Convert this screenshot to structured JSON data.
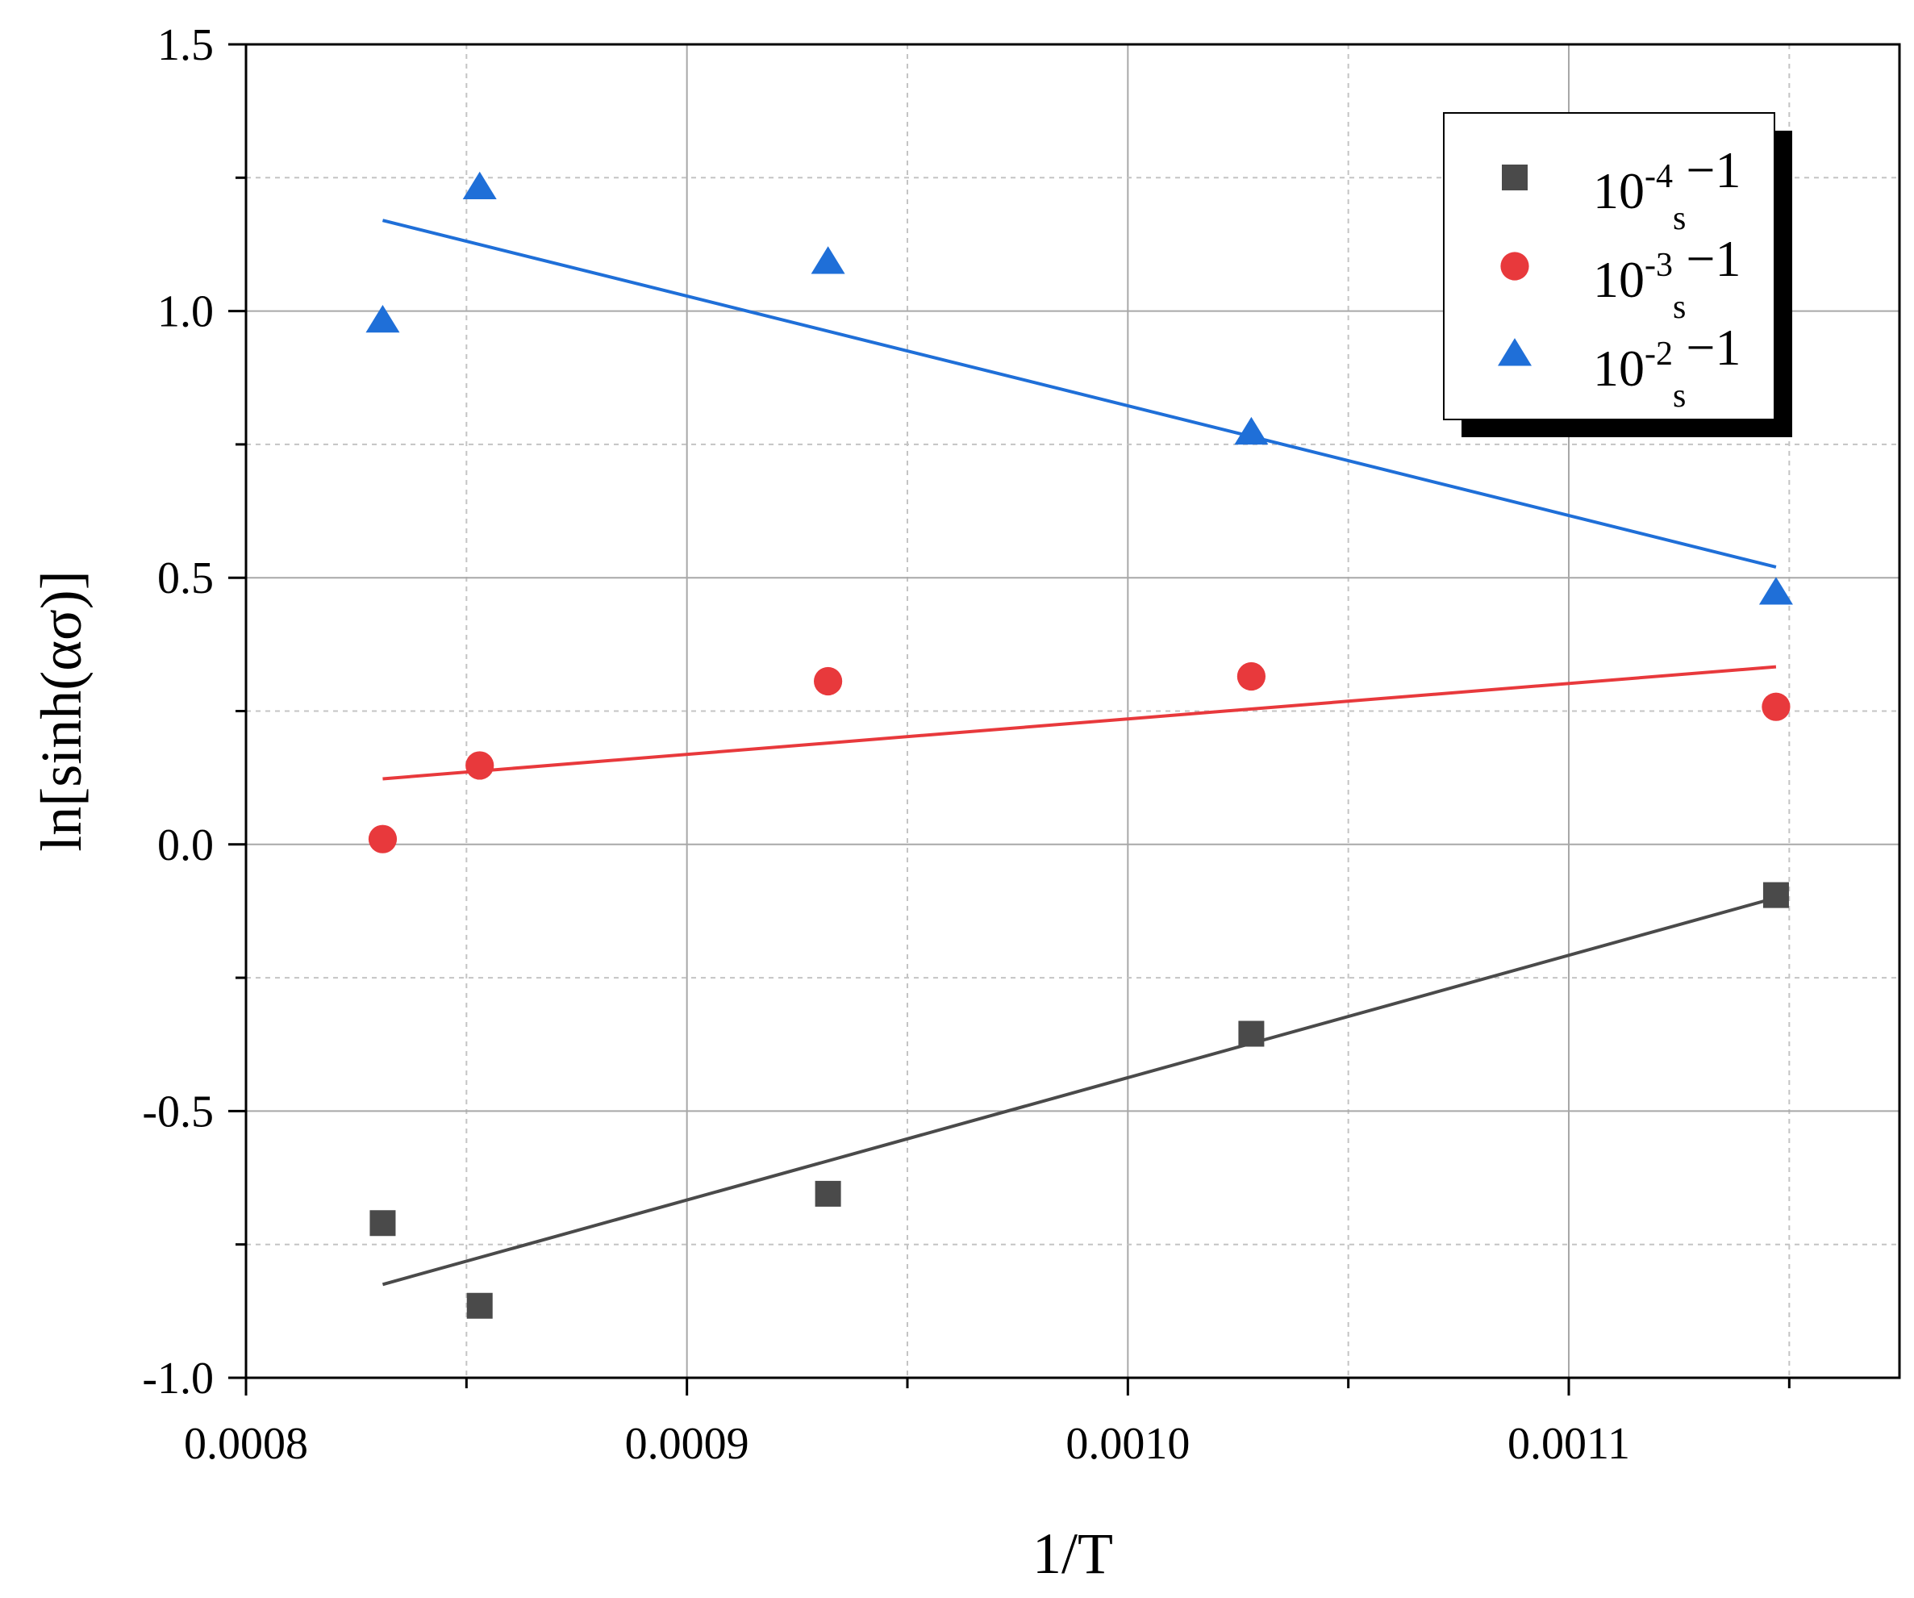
{
  "chart_data": {
    "type": "scatter",
    "title": "",
    "xlabel": "1/T",
    "ylabel": "ln[sinh(ασ)]",
    "xlim": [
      0.0008,
      0.001175
    ],
    "ylim": [
      -1.0,
      1.5
    ],
    "xticks": [
      0.0008,
      0.0009,
      0.001,
      0.0011
    ],
    "xtick_labels": [
      "0.0008",
      "0.0009",
      "0.0010",
      "0.0011"
    ],
    "xticks_minor": [
      0.00085,
      0.00095,
      0.00105,
      0.00115
    ],
    "yticks": [
      -1.0,
      -0.5,
      0.0,
      0.5,
      1.0,
      1.5
    ],
    "ytick_labels": [
      "-1.0",
      "-0.5",
      "0.0",
      "0.5",
      "1.0",
      "1.5"
    ],
    "yticks_minor": [
      -0.75,
      -0.25,
      0.25,
      0.75,
      1.25
    ],
    "grid": true,
    "legend_position": "top-right",
    "series": [
      {
        "name": "10-4s-1",
        "label_base": "10",
        "label_exp": "-4",
        "label_unit": "s",
        "label_unit_exp": "−1",
        "marker": "square",
        "color": "#4a4a4a",
        "x": [
          0.000831,
          0.000853,
          0.000932,
          0.001028,
          0.001147
        ],
        "y": [
          -0.71,
          -0.865,
          -0.655,
          -0.355,
          -0.095
        ],
        "fit": {
          "x": [
            0.000831,
            0.001147
          ],
          "y": [
            -0.825,
            -0.1
          ]
        }
      },
      {
        "name": "10-3s-1",
        "label_base": "10",
        "label_exp": "-3",
        "label_unit": "s",
        "label_unit_exp": "−1",
        "marker": "circle",
        "color": "#e8393c",
        "x": [
          0.000831,
          0.000853,
          0.000932,
          0.001028,
          0.001147
        ],
        "y": [
          0.01,
          0.148,
          0.306,
          0.315,
          0.258
        ],
        "fit": {
          "x": [
            0.000831,
            0.001147
          ],
          "y": [
            0.123,
            0.333
          ]
        }
      },
      {
        "name": "10-2s-1",
        "label_base": "10",
        "label_exp": "-2",
        "label_unit": "s",
        "label_unit_exp": "−1",
        "marker": "triangle",
        "color": "#1f6fd8",
        "x": [
          0.000831,
          0.000853,
          0.000932,
          0.001028,
          0.001147
        ],
        "y": [
          0.98,
          1.23,
          1.09,
          0.77,
          0.47
        ],
        "fit": {
          "x": [
            0.000831,
            0.001147
          ],
          "y": [
            1.17,
            0.52
          ]
        }
      }
    ]
  }
}
